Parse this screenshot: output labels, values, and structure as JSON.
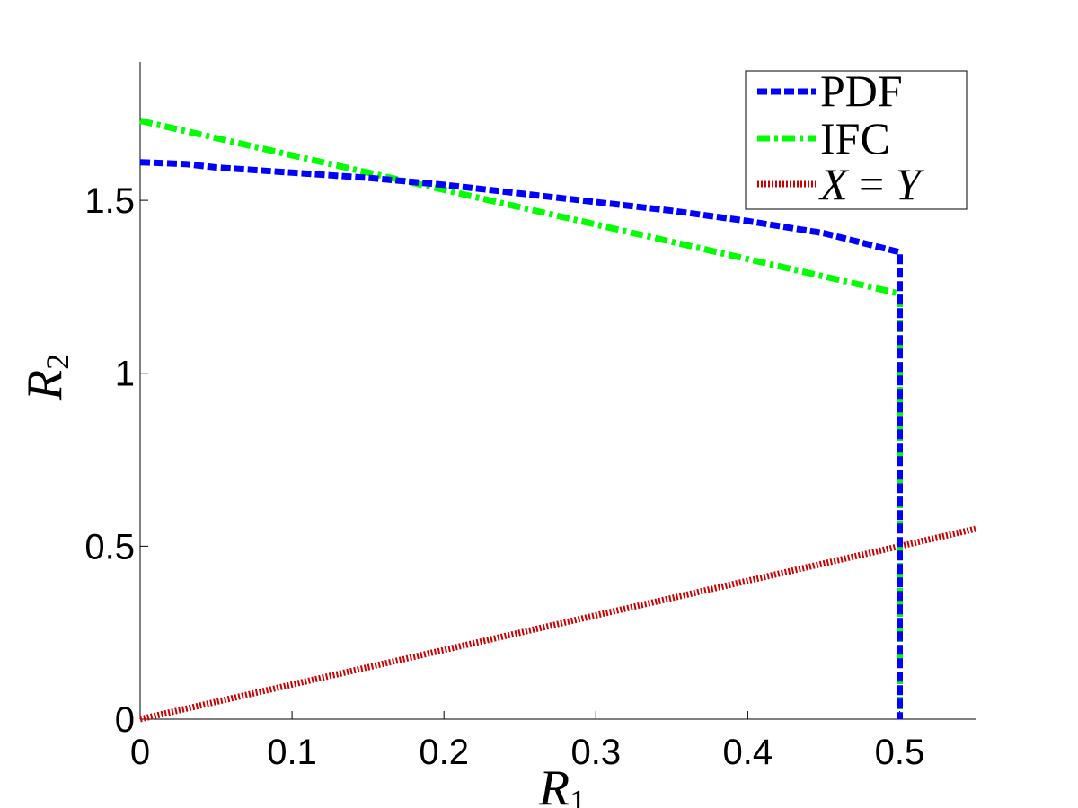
{
  "chart_data": {
    "type": "line",
    "xlabel": {
      "base": "R",
      "sub": "1"
    },
    "ylabel": {
      "base": "R",
      "sub": "2"
    },
    "xlim": [
      0,
      0.55
    ],
    "ylim": [
      0,
      1.9
    ],
    "xticks": [
      0,
      0.1,
      0.2,
      0.3,
      0.4,
      0.5
    ],
    "xtick_labels": [
      "0",
      "0.1",
      "0.2",
      "0.3",
      "0.4",
      "0.5"
    ],
    "yticks": [
      0,
      0.5,
      1,
      1.5
    ],
    "ytick_labels": [
      "0",
      "0.5",
      "1",
      "1.5"
    ],
    "grid": false,
    "legend_position": "top-right",
    "series": [
      {
        "name": "PDF",
        "color": "#0000ff",
        "style": "dashed",
        "x": [
          0,
          0.03,
          0.05,
          0.1,
          0.15,
          0.2,
          0.25,
          0.3,
          0.35,
          0.4,
          0.45,
          0.5,
          0.5
        ],
        "y": [
          1.61,
          1.605,
          1.595,
          1.58,
          1.565,
          1.545,
          1.52,
          1.495,
          1.47,
          1.44,
          1.405,
          1.35,
          0
        ]
      },
      {
        "name": "IFC",
        "color": "#00ff00",
        "style": "dashdot",
        "x": [
          0,
          0.1,
          0.2,
          0.3,
          0.4,
          0.5,
          0.5
        ],
        "y": [
          1.73,
          1.63,
          1.53,
          1.43,
          1.33,
          1.23,
          0
        ]
      },
      {
        "name": "X = Y",
        "color": "#cc0000",
        "style": "dotted",
        "x": [
          0,
          0.55
        ],
        "y": [
          0,
          0.55
        ]
      }
    ],
    "legend": {
      "entries": [
        {
          "label": "PDF",
          "math": false
        },
        {
          "label": "IFC",
          "math": false
        },
        {
          "label": "X = Y",
          "math": true,
          "parts": [
            "X",
            " = ",
            "Y"
          ]
        }
      ]
    }
  }
}
